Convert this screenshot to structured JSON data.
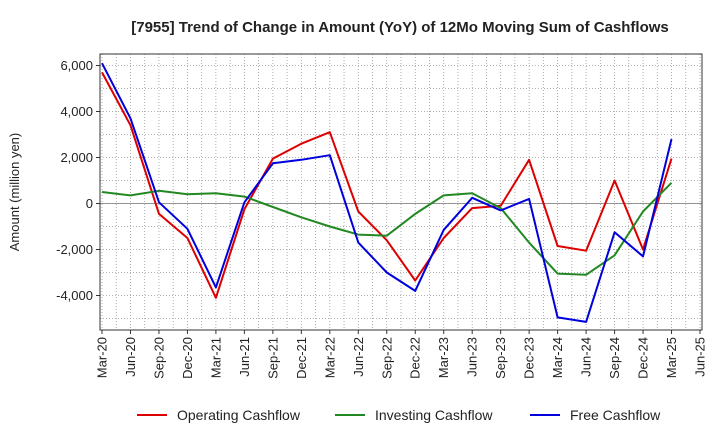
{
  "chart_data": {
    "type": "line",
    "title": "[7955]  Trend of Change in Amount (YoY) of 12Mo Moving Sum of Cashflows",
    "xlabel": "",
    "ylabel": "Amount (million yen)",
    "ylim": [
      -5500,
      6500
    ],
    "yticks": [
      6000,
      4000,
      2000,
      0,
      -2000,
      -4000
    ],
    "ytick_labels": [
      "6,000",
      "4,000",
      "2,000",
      "0",
      "-2,000",
      "-4,000"
    ],
    "grid": true,
    "legend_position": "bottom",
    "categories": [
      "Mar-20",
      "Jun-20",
      "Sep-20",
      "Dec-20",
      "Mar-21",
      "Jun-21",
      "Sep-21",
      "Dec-21",
      "Mar-22",
      "Jun-22",
      "Sep-22",
      "Dec-22",
      "Mar-23",
      "Jun-23",
      "Sep-23",
      "Dec-23",
      "Mar-24",
      "Jun-24",
      "Sep-24",
      "Dec-24",
      "Mar-25",
      "Jun-25"
    ],
    "series": [
      {
        "name": "Operating Cashflow",
        "color": "#dd0000",
        "values": [
          5700,
          3400,
          -450,
          -1500,
          -4100,
          -250,
          1950,
          2600,
          3100,
          -350,
          -1600,
          -3350,
          -1500,
          -200,
          -100,
          1900,
          -1850,
          -2050,
          1000,
          -2000,
          1950,
          null
        ]
      },
      {
        "name": "Investing Cashflow",
        "color": "#228822",
        "values": [
          500,
          350,
          550,
          400,
          450,
          300,
          -150,
          -600,
          -1000,
          -1350,
          -1400,
          -450,
          350,
          450,
          -200,
          -1700,
          -3050,
          -3100,
          -2250,
          -350,
          900,
          null
        ]
      },
      {
        "name": "Free Cashflow",
        "color": "#0000dd",
        "values": [
          6100,
          3700,
          50,
          -1100,
          -3650,
          50,
          1750,
          1900,
          2100,
          -1700,
          -3000,
          -3800,
          -1150,
          250,
          -300,
          200,
          -4950,
          -5150,
          -1250,
          -2300,
          2800,
          null
        ]
      }
    ]
  }
}
